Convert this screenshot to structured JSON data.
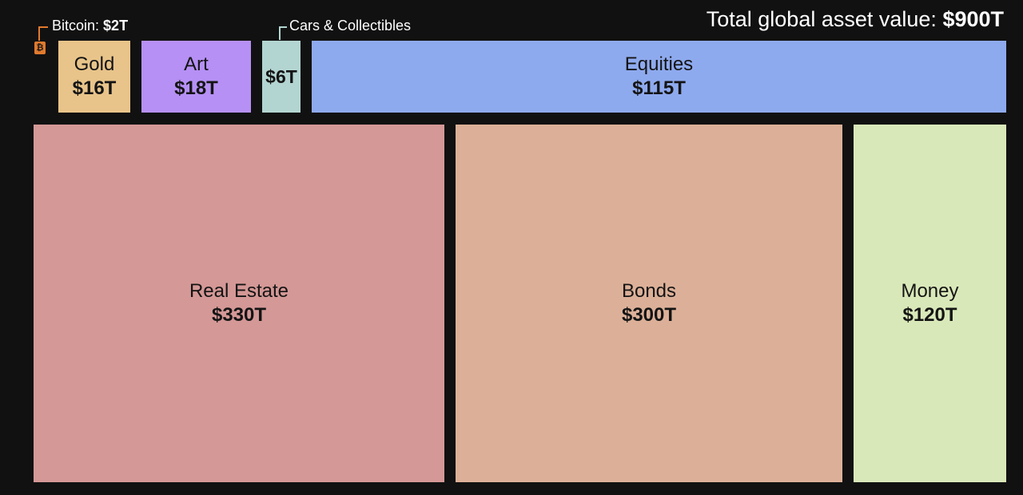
{
  "header": {
    "total_label": "Total global asset value:",
    "total_value": "$900T"
  },
  "callouts": {
    "bitcoin_label": "Bitcoin:",
    "bitcoin_value": "$2T",
    "bitcoin_icon": "bitcoin-icon",
    "cars_label": "Cars & Collectibles"
  },
  "chart_data": {
    "type": "treemap",
    "title": "Total global asset value: $900T",
    "unit": "trillion USD",
    "items": [
      {
        "name": "Bitcoin",
        "value": 2,
        "label": "$2T",
        "color": "#e07a2e"
      },
      {
        "name": "Gold",
        "value": 16,
        "label": "$16T",
        "color": "#e8c48a"
      },
      {
        "name": "Art",
        "value": 18,
        "label": "$18T",
        "color": "#b690f5"
      },
      {
        "name": "Cars & Collectibles",
        "value": 6,
        "label": "$6T",
        "color": "#b3d5d1"
      },
      {
        "name": "Equities",
        "value": 115,
        "label": "$115T",
        "color": "#8eaaee"
      },
      {
        "name": "Real Estate",
        "value": 330,
        "label": "$330T",
        "color": "#d49896"
      },
      {
        "name": "Bonds",
        "value": 300,
        "label": "$300T",
        "color": "#dcb098"
      },
      {
        "name": "Money",
        "value": 120,
        "label": "$120T",
        "color": "#d9e8b9"
      }
    ]
  }
}
